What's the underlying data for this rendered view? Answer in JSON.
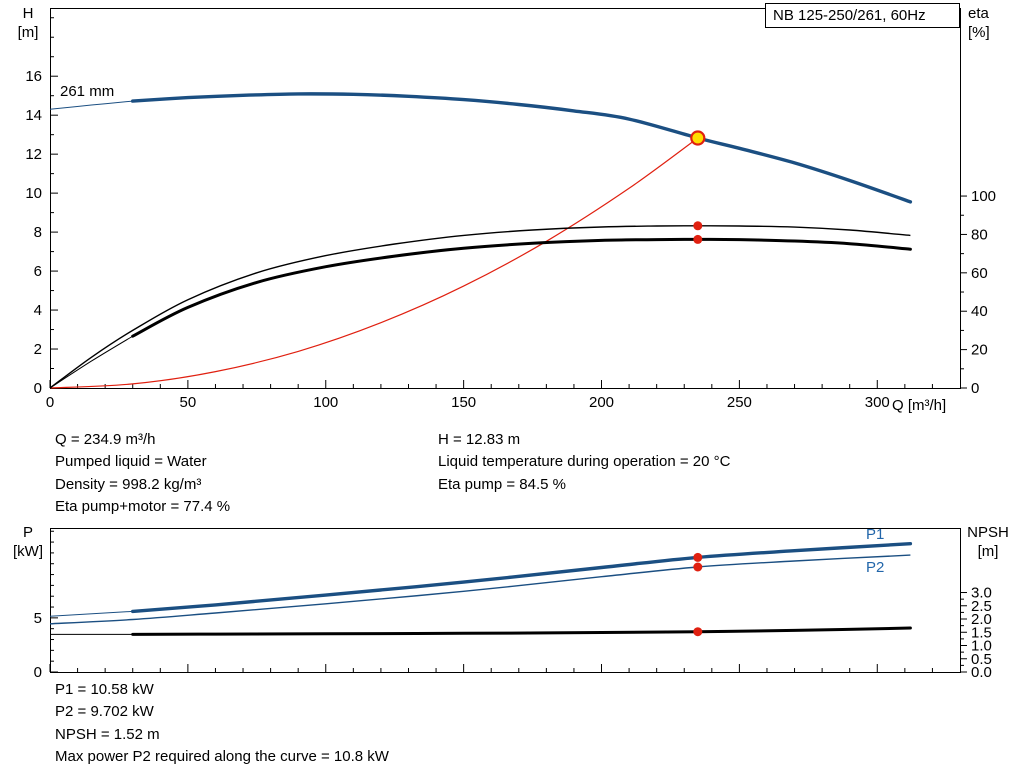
{
  "annotations": {
    "top_left": [
      "Q = 234.9 m³/h",
      "Pumped liquid = Water",
      "Density = 998.2 kg/m³",
      "Eta pump+motor = 77.4 %"
    ],
    "top_right": [
      "H = 12.83 m",
      "Liquid temperature during operation = 20 °C",
      "Eta pump = 84.5 %"
    ],
    "bottom": [
      "P1 = 10.58 kW",
      "P2 = 9.702 kW",
      "NPSH = 1.52 m",
      "Max power P2 required along the curve = 10.8 kW"
    ]
  },
  "colors": {
    "curve_blue": "#1b4f82",
    "label_blue": "#2266aa",
    "red": "#e02010",
    "black": "#000000",
    "duty_yellow": "#ffdd00"
  },
  "chart_data": [
    {
      "name": "qh-efficiency-chart",
      "type": "line",
      "title": "NB 125-250/261, 60Hz",
      "xlabel": "Q [m³/h]",
      "ylabel_left": "H",
      "ylabel_left_unit": "[m]",
      "ylabel_right": "eta",
      "ylabel_right_unit": "[%]",
      "x_range": [
        0,
        330
      ],
      "x_ticks": [
        0,
        50,
        100,
        150,
        200,
        250,
        300
      ],
      "x_minor_step": 10,
      "show_x_tick_labels": true,
      "y_left_range": [
        0,
        19.5
      ],
      "y_left_ticks": [
        0,
        2,
        4,
        6,
        8,
        10,
        12,
        14,
        16
      ],
      "y_left_minor_step": 1,
      "y_right_ticks": [
        0,
        20,
        40,
        60,
        80,
        100
      ],
      "y_right_tick_labels": [
        "0",
        "20",
        "40",
        "60",
        "80",
        "100"
      ],
      "y_right_minor_step": 10,
      "right_factor": 0.0985,
      "series": [
        {
          "name": "head-curve-261mm",
          "label": "261 mm",
          "color": "#1b4f82",
          "width": 3.4,
          "axis": "left",
          "thick_from": 2,
          "points": [
            [
              0,
              14.3
            ],
            [
              15,
              14.52
            ],
            [
              30,
              14.72
            ],
            [
              50,
              14.9
            ],
            [
              70,
              15.02
            ],
            [
              90,
              15.09
            ],
            [
              110,
              15.07
            ],
            [
              130,
              14.97
            ],
            [
              150,
              14.8
            ],
            [
              170,
              14.55
            ],
            [
              190,
              14.22
            ],
            [
              210,
              13.8
            ],
            [
              234.9,
              12.83
            ],
            [
              250,
              12.3
            ],
            [
              270,
              11.55
            ],
            [
              290,
              10.65
            ],
            [
              312,
              9.55
            ]
          ]
        },
        {
          "name": "system-curve",
          "color": "#e02010",
          "width": 1.2,
          "axis": "left",
          "thick_from": 0,
          "points": [
            [
              0,
              0
            ],
            [
              30,
              0.21
            ],
            [
              60,
              0.84
            ],
            [
              90,
              1.88
            ],
            [
              120,
              3.35
            ],
            [
              150,
              5.23
            ],
            [
              180,
              7.53
            ],
            [
              210,
              10.25
            ],
            [
              234.9,
              12.83
            ]
          ]
        },
        {
          "name": "eta-pump-curve",
          "color": "#000000",
          "width": 1.4,
          "axis": "right",
          "thick_from": 0,
          "points": [
            [
              0,
              0
            ],
            [
              15,
              16
            ],
            [
              30,
              30
            ],
            [
              50,
              46
            ],
            [
              75,
              60
            ],
            [
              100,
              69
            ],
            [
              125,
              75
            ],
            [
              150,
              79.5
            ],
            [
              175,
              82.3
            ],
            [
              200,
              83.9
            ],
            [
              220,
              84.4
            ],
            [
              234.9,
              84.5
            ],
            [
              250,
              84.4
            ],
            [
              270,
              83.8
            ],
            [
              290,
              82.3
            ],
            [
              312,
              79.5
            ]
          ]
        },
        {
          "name": "eta-pump-motor-curve",
          "color": "#000000",
          "width": 3,
          "axis": "right",
          "thick_from": 2,
          "points": [
            [
              0,
              0
            ],
            [
              15,
              14
            ],
            [
              30,
              27
            ],
            [
              50,
              42
            ],
            [
              75,
              55
            ],
            [
              100,
              63.2
            ],
            [
              125,
              68.7
            ],
            [
              150,
              72.8
            ],
            [
              175,
              75.4
            ],
            [
              200,
              76.9
            ],
            [
              220,
              77.3
            ],
            [
              234.9,
              77.4
            ],
            [
              250,
              77.3
            ],
            [
              270,
              76.6
            ],
            [
              290,
              75.2
            ],
            [
              312,
              72.3
            ]
          ]
        }
      ],
      "markers": [
        {
          "name": "duty-point",
          "style": "duty",
          "x": 234.9,
          "value": 12.83,
          "axis": "left",
          "fill": "#ffdd00",
          "stroke": "#e02010"
        },
        {
          "name": "eta-pump-duty-dot",
          "style": "dot",
          "x": 234.9,
          "value": 84.5,
          "axis": "right",
          "color": "#e02010"
        },
        {
          "name": "eta-pump-motor-duty-dot",
          "style": "dot",
          "x": 234.9,
          "value": 77.4,
          "axis": "right",
          "color": "#e02010"
        }
      ]
    },
    {
      "name": "power-npsh-chart",
      "type": "line",
      "xlabel": "",
      "ylabel_left": "P",
      "ylabel_left_unit": "[kW]",
      "ylabel_right": "NPSH",
      "ylabel_right_unit": "[m]",
      "x_range": [
        0,
        330
      ],
      "x_ticks": [
        0,
        50,
        100,
        150,
        200,
        250,
        300
      ],
      "x_minor_step": 10,
      "show_x_tick_labels": false,
      "y_left_range": [
        0,
        13.3
      ],
      "y_left_ticks": [
        0,
        5
      ],
      "y_left_minor_step": 1,
      "y_right_ticks": [
        0,
        0.5,
        1,
        1.5,
        2,
        2.5,
        3
      ],
      "y_right_tick_labels": [
        "0.0",
        "0.5",
        "1.0",
        "1.5",
        "2.0",
        "2.5",
        "3.0"
      ],
      "y_right_minor_step": 0.25,
      "right_factor": 2.447,
      "series": [
        {
          "name": "p1-curve",
          "label": "P1",
          "color": "#1b4f82",
          "width": 3.4,
          "axis": "left",
          "thick_from": 1,
          "points": [
            [
              0,
              5.15
            ],
            [
              30,
              5.6
            ],
            [
              60,
              6.2
            ],
            [
              100,
              7.1
            ],
            [
              150,
              8.3
            ],
            [
              200,
              9.65
            ],
            [
              234.9,
              10.58
            ],
            [
              270,
              11.2
            ],
            [
              312,
              11.85
            ]
          ]
        },
        {
          "name": "p2-curve",
          "label": "P2",
          "color": "#1b4f82",
          "width": 1.4,
          "axis": "left",
          "thick_from": 0,
          "points": [
            [
              0,
              4.45
            ],
            [
              30,
              4.85
            ],
            [
              60,
              5.45
            ],
            [
              100,
              6.3
            ],
            [
              150,
              7.45
            ],
            [
              200,
              8.8
            ],
            [
              234.9,
              9.702
            ],
            [
              270,
              10.25
            ],
            [
              312,
              10.8
            ]
          ]
        },
        {
          "name": "npsh-curve",
          "color": "#000000",
          "width": 3,
          "axis": "right",
          "thick_from": 1,
          "points": [
            [
              0,
              1.42
            ],
            [
              30,
              1.42
            ],
            [
              60,
              1.43
            ],
            [
              100,
              1.44
            ],
            [
              150,
              1.46
            ],
            [
              200,
              1.49
            ],
            [
              234.9,
              1.52
            ],
            [
              270,
              1.57
            ],
            [
              312,
              1.66
            ]
          ]
        }
      ],
      "markers": [
        {
          "name": "p1-duty-dot",
          "style": "dot",
          "x": 234.9,
          "value": 10.58,
          "axis": "left",
          "color": "#e02010"
        },
        {
          "name": "p2-duty-dot",
          "style": "dot",
          "x": 234.9,
          "value": 9.702,
          "axis": "left",
          "color": "#e02010"
        },
        {
          "name": "npsh-duty-dot",
          "style": "dot",
          "x": 234.9,
          "value": 1.52,
          "axis": "right",
          "color": "#e02010"
        }
      ]
    }
  ]
}
